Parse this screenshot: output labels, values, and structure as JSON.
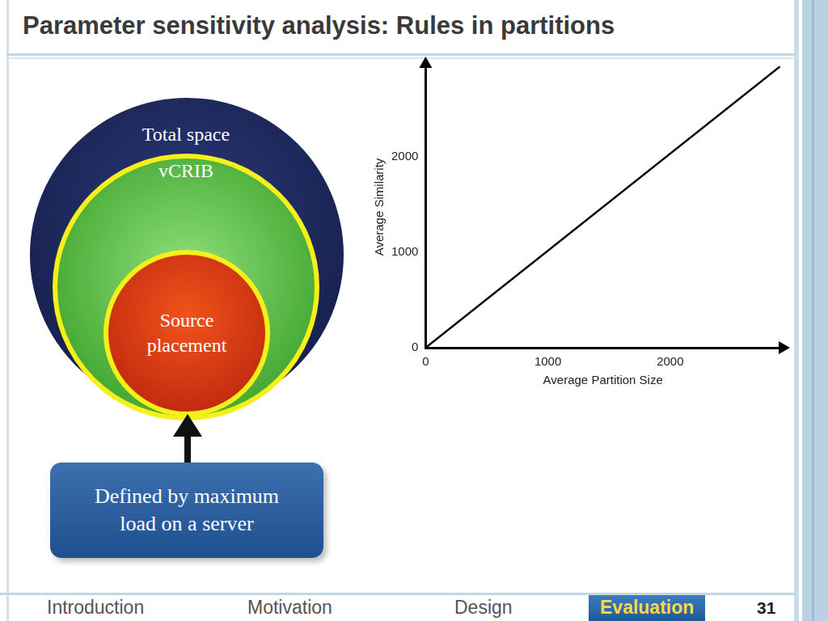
{
  "slide": {
    "title": "Parameter sensitivity analysis: Rules in partitions",
    "diagram": {
      "circles": [
        "Total space",
        "vCRIB",
        "Source placement"
      ],
      "note": "Defined by maximum load on a server"
    },
    "footer": {
      "nav": [
        "Introduction",
        "Motivation",
        "Design",
        "Evaluation"
      ],
      "active": "Evaluation",
      "page": 31
    }
  },
  "chart_data": {
    "type": "line",
    "x_label": "Average Partition Size",
    "y_label": "Average Similarity",
    "x": [
      0,
      2900
    ],
    "values": [
      0,
      2950
    ],
    "color": "#000000",
    "xlim": [
      0,
      2900
    ],
    "xticks": [
      0,
      1000,
      2000
    ],
    "ylim": [
      0,
      2950
    ],
    "yticks": [
      0,
      1000,
      2000
    ],
    "grid": false
  }
}
